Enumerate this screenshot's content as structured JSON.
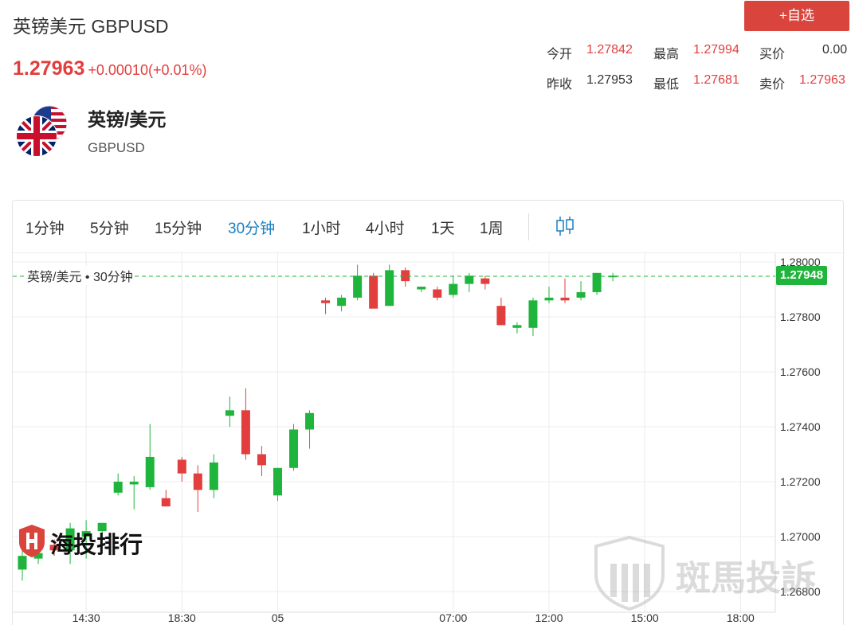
{
  "header": {
    "title": "英镑美元 GBPUSD",
    "add_button": "+自选",
    "price": "1.27963",
    "change": "+0.00010(+0.01%)"
  },
  "stats": {
    "open_label": "今开",
    "open_value": "1.27842",
    "high_label": "最高",
    "high_value": "1.27994",
    "bid_label": "买价",
    "bid_value": "0.00",
    "prev_close_label": "昨收",
    "prev_close_value": "1.27953",
    "low_label": "最低",
    "low_value": "1.27681",
    "ask_label": "卖价",
    "ask_value": "1.27963"
  },
  "pair": {
    "name": "英镑/美元",
    "code": "GBPUSD"
  },
  "tabs": [
    {
      "label": "1分钟"
    },
    {
      "label": "5分钟"
    },
    {
      "label": "15分钟"
    },
    {
      "label": "30分钟",
      "active": true
    },
    {
      "label": "1小时"
    },
    {
      "label": "4小时"
    },
    {
      "label": "1天"
    },
    {
      "label": "1周"
    }
  ],
  "chart": {
    "legend": "英镑/美元 • 30分钟",
    "current_price_tag": "1.27948",
    "current_price": 1.27948,
    "up_color": "#1fb43b",
    "down_color": "#e23e3e",
    "y_ticks": [
      "1.28000",
      "1.27800",
      "1.27600",
      "1.27400",
      "1.27200",
      "1.27000",
      "1.26800"
    ],
    "x_ticks": [
      "14:30",
      "18:30",
      "05",
      "07:00",
      "12:00",
      "15:00",
      "18:00"
    ]
  },
  "chart_data": {
    "type": "candlestick",
    "ylim": [
      1.2675,
      1.2803
    ],
    "y_ticks": [
      1.28,
      1.278,
      1.276,
      1.274,
      1.272,
      1.27,
      1.268
    ],
    "x_tick_labels": [
      "14:30",
      "18:30",
      "05",
      "07:00",
      "12:00",
      "15:00",
      "18:00"
    ],
    "x_tick_index": [
      4,
      10,
      16,
      27,
      33,
      39,
      45
    ],
    "candles": [
      {
        "o": 1.2688,
        "h": 1.2695,
        "l": 1.2684,
        "c": 1.2693
      },
      {
        "o": 1.2692,
        "h": 1.2697,
        "l": 1.269,
        "c": 1.2694
      },
      {
        "o": 1.2697,
        "h": 1.2699,
        "l": 1.2693,
        "c": 1.2695
      },
      {
        "o": 1.2695,
        "h": 1.2705,
        "l": 1.269,
        "c": 1.2703
      },
      {
        "o": 1.27,
        "h": 1.2706,
        "l": 1.2692,
        "c": 1.2702
      },
      {
        "o": 1.2702,
        "h": 1.2704,
        "l": 1.2698,
        "c": 1.2705
      },
      {
        "o": 1.2716,
        "h": 1.2723,
        "l": 1.2715,
        "c": 1.272
      },
      {
        "o": 1.2719,
        "h": 1.2722,
        "l": 1.271,
        "c": 1.272
      },
      {
        "o": 1.2718,
        "h": 1.2741,
        "l": 1.2717,
        "c": 1.2729
      },
      {
        "o": 1.2714,
        "h": 1.2717,
        "l": 1.2711,
        "c": 1.2711
      },
      {
        "o": 1.2728,
        "h": 1.2729,
        "l": 1.272,
        "c": 1.2723
      },
      {
        "o": 1.2723,
        "h": 1.2726,
        "l": 1.2709,
        "c": 1.2717
      },
      {
        "o": 1.2717,
        "h": 1.273,
        "l": 1.2714,
        "c": 1.2727
      },
      {
        "o": 1.2744,
        "h": 1.2751,
        "l": 1.274,
        "c": 1.2746
      },
      {
        "o": 1.2746,
        "h": 1.2754,
        "l": 1.2728,
        "c": 1.273
      },
      {
        "o": 1.273,
        "h": 1.2733,
        "l": 1.2722,
        "c": 1.2726
      },
      {
        "o": 1.2715,
        "h": 1.2725,
        "l": 1.2713,
        "c": 1.2725
      },
      {
        "o": 1.2725,
        "h": 1.2741,
        "l": 1.2724,
        "c": 1.2739
      },
      {
        "o": 1.2739,
        "h": 1.2746,
        "l": 1.2732,
        "c": 1.2745
      },
      {
        "o": 1.2786,
        "h": 1.2787,
        "l": 1.2781,
        "c": 1.2785
      },
      {
        "o": 1.2784,
        "h": 1.2788,
        "l": 1.2782,
        "c": 1.2787
      },
      {
        "o": 1.2787,
        "h": 1.2799,
        "l": 1.2786,
        "c": 1.2795
      },
      {
        "o": 1.2795,
        "h": 1.2796,
        "l": 1.2783,
        "c": 1.2783
      },
      {
        "o": 1.2784,
        "h": 1.2799,
        "l": 1.2784,
        "c": 1.2797
      },
      {
        "o": 1.2797,
        "h": 1.2798,
        "l": 1.2791,
        "c": 1.2793
      },
      {
        "o": 1.279,
        "h": 1.2791,
        "l": 1.2789,
        "c": 1.2791
      },
      {
        "o": 1.279,
        "h": 1.2791,
        "l": 1.2786,
        "c": 1.2787
      },
      {
        "o": 1.2788,
        "h": 1.2795,
        "l": 1.2787,
        "c": 1.2792
      },
      {
        "o": 1.2792,
        "h": 1.2796,
        "l": 1.2789,
        "c": 1.2795
      },
      {
        "o": 1.2794,
        "h": 1.2795,
        "l": 1.279,
        "c": 1.2792
      },
      {
        "o": 1.2784,
        "h": 1.2787,
        "l": 1.2777,
        "c": 1.2777
      },
      {
        "o": 1.2776,
        "h": 1.2778,
        "l": 1.2774,
        "c": 1.2777
      },
      {
        "o": 1.2776,
        "h": 1.2787,
        "l": 1.2773,
        "c": 1.2786
      },
      {
        "o": 1.2786,
        "h": 1.2791,
        "l": 1.2785,
        "c": 1.2787
      },
      {
        "o": 1.2787,
        "h": 1.2794,
        "l": 1.2785,
        "c": 1.2786
      },
      {
        "o": 1.2787,
        "h": 1.2793,
        "l": 1.2786,
        "c": 1.2789
      },
      {
        "o": 1.2789,
        "h": 1.2796,
        "l": 1.2788,
        "c": 1.2796
      },
      {
        "o": 1.2795,
        "h": 1.2796,
        "l": 1.2793,
        "c": 1.2795
      }
    ]
  }
}
